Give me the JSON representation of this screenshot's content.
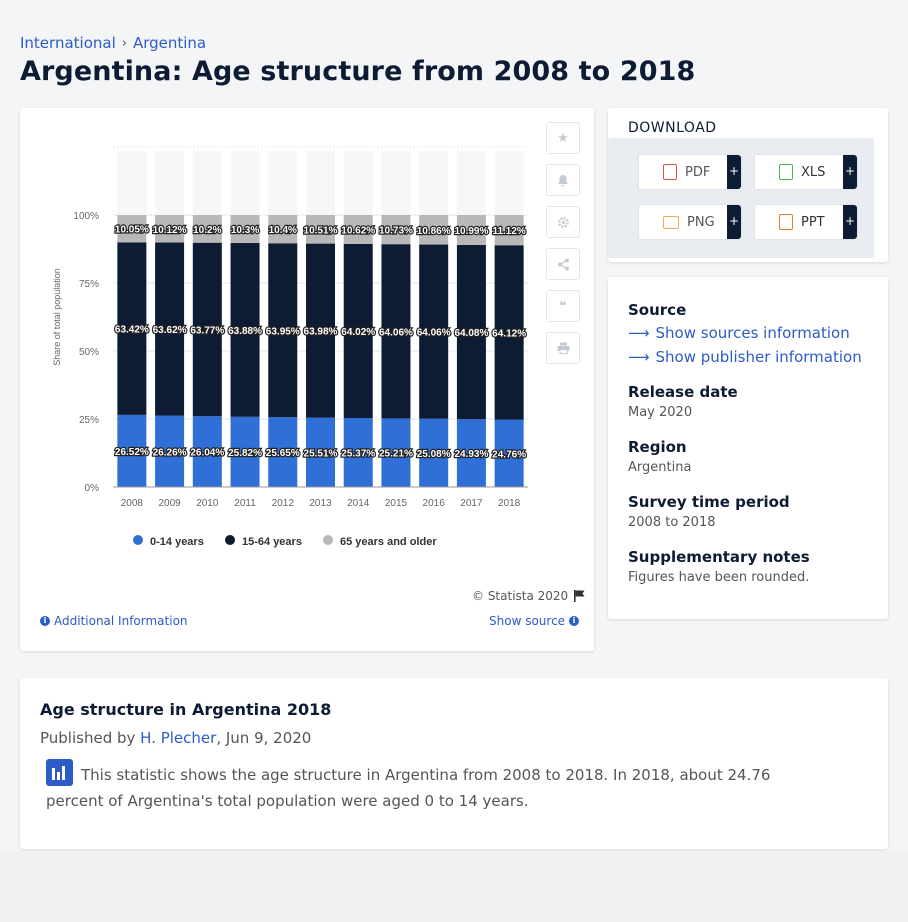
{
  "breadcrumb": {
    "items": [
      "International",
      "Argentina"
    ],
    "separator": "›"
  },
  "page_title": "Argentina: Age structure from 2008 to 2018",
  "chart": {
    "copyright": "© Statista 2020",
    "additional_info": "Additional Information",
    "show_source": "Show source"
  },
  "chart_data": {
    "type": "bar",
    "stacked": true,
    "percent_stacked": true,
    "categories": [
      "2008",
      "2009",
      "2010",
      "2011",
      "2012",
      "2013",
      "2014",
      "2015",
      "2016",
      "2017",
      "2018"
    ],
    "series": [
      {
        "name": "0-14 years",
        "color": "#2f6fd6",
        "values": [
          26.52,
          26.26,
          26.04,
          25.82,
          25.65,
          25.51,
          25.37,
          25.21,
          25.08,
          24.93,
          24.76
        ],
        "labels": [
          "26.52%",
          "26.26%",
          "26.04%",
          "25.82%",
          "25.65%",
          "25.51%",
          "25.37%",
          "25.21%",
          "25.08%",
          "24.93%",
          "24.76%"
        ]
      },
      {
        "name": "15-64 years",
        "color": "#0d1b33",
        "values": [
          63.42,
          63.62,
          63.77,
          63.88,
          63.95,
          63.98,
          64.02,
          64.06,
          64.06,
          64.08,
          64.12
        ],
        "labels": [
          "63.42%",
          "63.62%",
          "63.77%",
          "63.88%",
          "63.95%",
          "63.98%",
          "64.02%",
          "64.06%",
          "64.06%",
          "64.08%",
          "64.12%"
        ]
      },
      {
        "name": "65 years and older",
        "color": "#b8b8b8",
        "values": [
          10.05,
          10.12,
          10.2,
          10.3,
          10.4,
          10.51,
          10.62,
          10.73,
          10.86,
          10.99,
          11.12
        ],
        "labels": [
          "10.05%",
          "10.12%",
          "10.2%",
          "10.3%",
          "10.4%",
          "10.51%",
          "10.62%",
          "10.73%",
          "10.86%",
          "10.99%",
          "11.12%"
        ]
      }
    ],
    "ylabel": "Share of total population",
    "yticks": [
      "0%",
      "25%",
      "50%",
      "75%",
      "100%"
    ],
    "ylim": [
      0,
      125
    ],
    "legend_position": "bottom",
    "grid": true
  },
  "download": {
    "title": "DOWNLOAD",
    "buttons": [
      {
        "label": "PDF",
        "icon": "pdf-icon",
        "color": "#d9534f"
      },
      {
        "label": "XLS",
        "icon": "xls-icon",
        "color": "#4cae4c"
      },
      {
        "label": "PNG",
        "icon": "png-icon",
        "color": "#f0ad4e"
      },
      {
        "label": "PPT",
        "icon": "ppt-icon",
        "color": "#e67e22"
      }
    ],
    "plus": "+"
  },
  "meta": {
    "source_label": "Source",
    "show_sources": "Show sources information",
    "show_publisher": "Show publisher information",
    "release_label": "Release date",
    "release_value": "May 2020",
    "region_label": "Region",
    "region_value": "Argentina",
    "survey_label": "Survey time period",
    "survey_value": "2008 to 2018",
    "notes_label": "Supplementary notes",
    "notes_value": "Figures have been rounded."
  },
  "description": {
    "title": "Age structure in Argentina 2018",
    "published_prefix": "Published by",
    "author": "H. Plecher",
    "date": ", Jun 9, 2020",
    "text": "This statistic shows the age structure in Argentina from 2008 to 2018. In 2018, about 24.76 percent of Argentina's total population were aged 0 to 14 years."
  }
}
